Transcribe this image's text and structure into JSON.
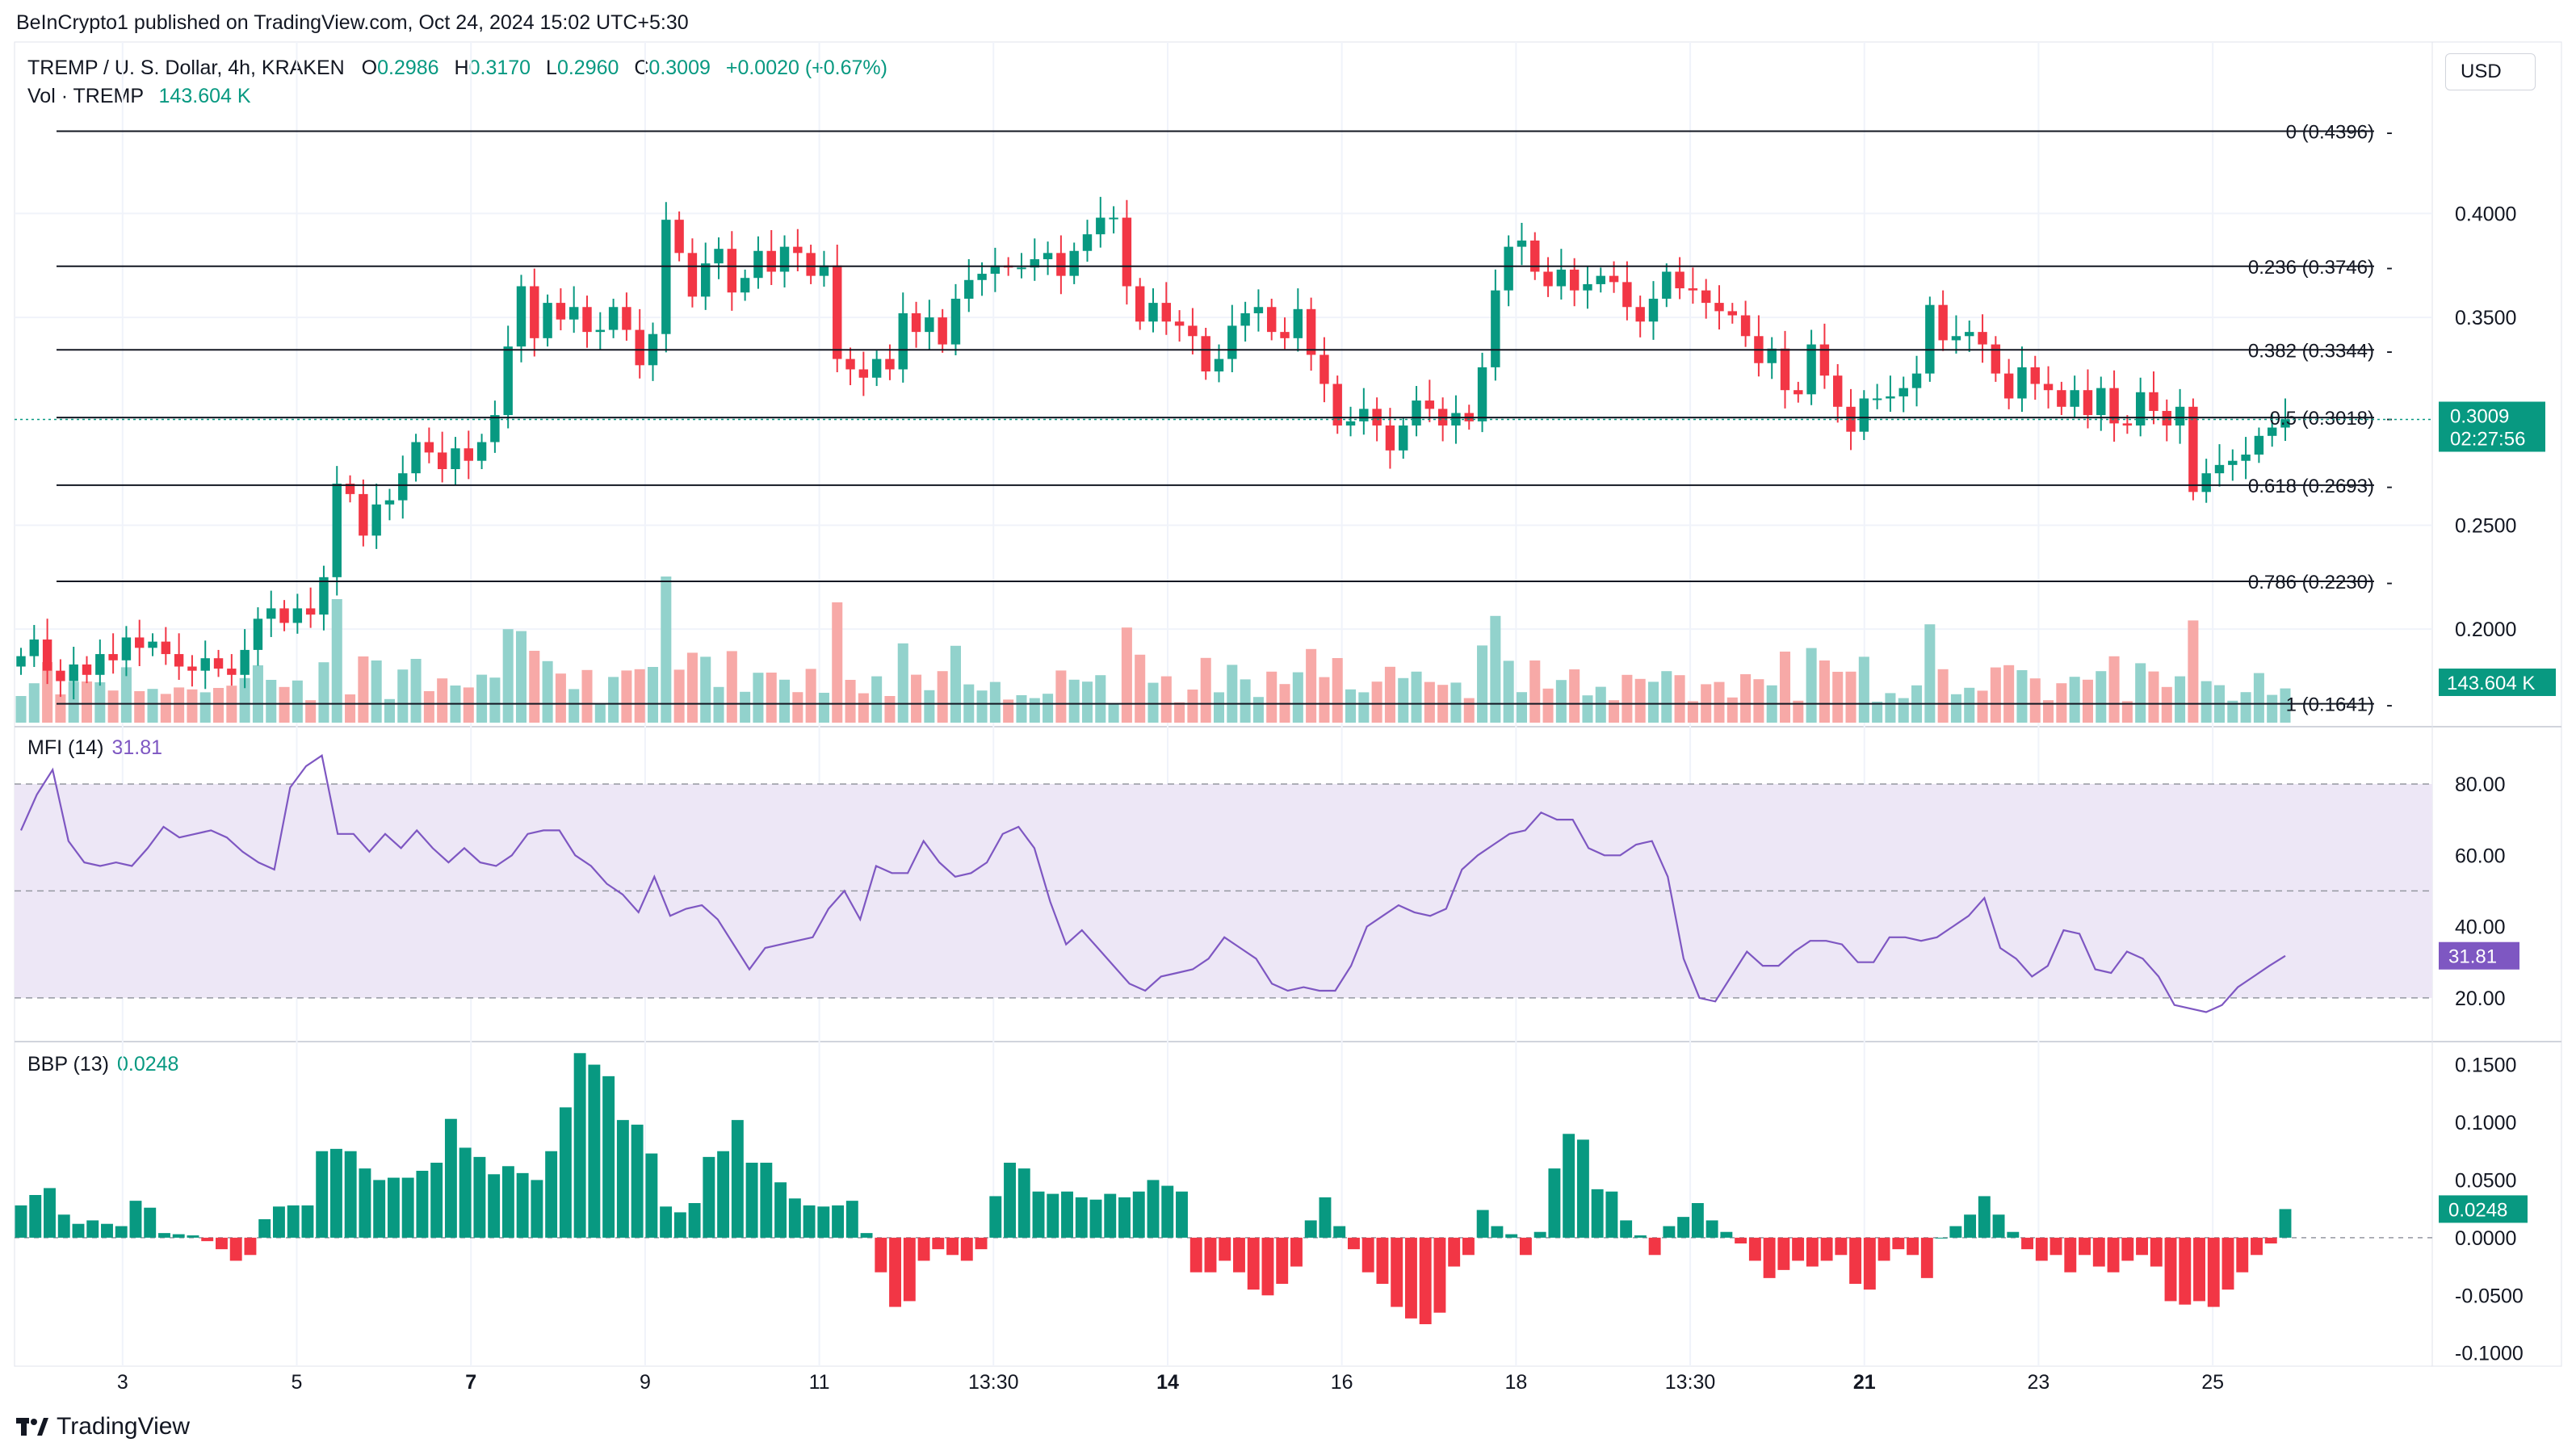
{
  "header": {
    "attribution": "BeInCrypto1 published on TradingView.com, Oct 24, 2024 15:02 UTC+5:30",
    "symbol": "TREMP / U. S. Dollar, 4h, KRAKEN",
    "ohlc": [
      {
        "k": "O",
        "v": "0.2986"
      },
      {
        "k": "H",
        "v": "0.3170"
      },
      {
        "k": "L",
        "v": "0.2960"
      },
      {
        "k": "C",
        "v": "0.3009"
      }
    ],
    "change": "+0.0020 (+0.67%)",
    "vol_label": "Vol · TREMP",
    "vol_value": "143.604 K",
    "currency": "USD"
  },
  "footer": {
    "brand": "TradingView"
  },
  "colors": {
    "up": "#089981",
    "down": "#f23645",
    "up_vol": "#92d2cc",
    "down_vol": "#f7a9a7",
    "mfi": "#7e57c2",
    "mfi_band": "#ede7f6"
  },
  "chart_data": [
    {
      "type": "candlestick",
      "title": "TREMP / U. S. Dollar, 4h, KRAKEN",
      "ylim": [
        0.155,
        0.46
      ],
      "y_ticks": [
        "0.4000",
        "0.3500",
        "0.2500",
        "0.2000"
      ],
      "x_ticks": [
        "3",
        "5",
        "7",
        "9",
        "11",
        "13:30",
        "14",
        "16",
        "18",
        "13:30",
        "21",
        "23",
        "25"
      ],
      "bold_x_ticks": [
        "7",
        "14",
        "21"
      ],
      "fib_levels": [
        {
          "ratio": "0",
          "value": 0.4396,
          "label": "0 (0.4396)"
        },
        {
          "ratio": "0.236",
          "value": 0.3746,
          "label": "0.236 (0.3746)"
        },
        {
          "ratio": "0.382",
          "value": 0.3344,
          "label": "0.382 (0.3344)"
        },
        {
          "ratio": "0.5",
          "value": 0.3018,
          "label": "0.5 (0.3018)"
        },
        {
          "ratio": "0.618",
          "value": 0.2693,
          "label": "0.618 (0.2693)"
        },
        {
          "ratio": "0.786",
          "value": 0.223,
          "label": "0.786 (0.2230)"
        },
        {
          "ratio": "1",
          "value": 0.1641,
          "label": "1 (0.1641)"
        }
      ],
      "last_price": "0.3009",
      "countdown": "02:27:56",
      "last_volume": "143.604 K",
      "closes": [
        0.187,
        0.195,
        0.18,
        0.175,
        0.183,
        0.178,
        0.188,
        0.185,
        0.196,
        0.191,
        0.194,
        0.188,
        0.182,
        0.18,
        0.186,
        0.181,
        0.178,
        0.19,
        0.205,
        0.21,
        0.203,
        0.21,
        0.207,
        0.225,
        0.27,
        0.265,
        0.245,
        0.26,
        0.262,
        0.275,
        0.29,
        0.285,
        0.277,
        0.287,
        0.281,
        0.29,
        0.303,
        0.336,
        0.365,
        0.34,
        0.357,
        0.349,
        0.355,
        0.343,
        0.344,
        0.355,
        0.344,
        0.327,
        0.342,
        0.397,
        0.381,
        0.36,
        0.376,
        0.383,
        0.362,
        0.369,
        0.382,
        0.372,
        0.384,
        0.381,
        0.37,
        0.375,
        0.33,
        0.325,
        0.321,
        0.33,
        0.325,
        0.352,
        0.343,
        0.35,
        0.337,
        0.359,
        0.368,
        0.371,
        0.375,
        0.374,
        0.374,
        0.378,
        0.381,
        0.37,
        0.382,
        0.39,
        0.398,
        0.398,
        0.365,
        0.348,
        0.357,
        0.348,
        0.346,
        0.341,
        0.324,
        0.33,
        0.346,
        0.352,
        0.355,
        0.343,
        0.34,
        0.354,
        0.332,
        0.318,
        0.298,
        0.3,
        0.306,
        0.298,
        0.286,
        0.298,
        0.31,
        0.306,
        0.298,
        0.304,
        0.3,
        0.326,
        0.363,
        0.384,
        0.387,
        0.372,
        0.365,
        0.373,
        0.363,
        0.366,
        0.37,
        0.367,
        0.355,
        0.348,
        0.359,
        0.372,
        0.364,
        0.363,
        0.357,
        0.353,
        0.351,
        0.341,
        0.328,
        0.335,
        0.315,
        0.313,
        0.337,
        0.322,
        0.307,
        0.295,
        0.311,
        0.311,
        0.312,
        0.316,
        0.323,
        0.356,
        0.339,
        0.341,
        0.343,
        0.337,
        0.323,
        0.311,
        0.326,
        0.318,
        0.315,
        0.307,
        0.315,
        0.303,
        0.316,
        0.299,
        0.298,
        0.314,
        0.305,
        0.298,
        0.307,
        0.266,
        0.275,
        0.279,
        0.281,
        0.284,
        0.293,
        0.297,
        0.301
      ]
    },
    {
      "type": "line",
      "title": "MFI (14)",
      "value": "31.81",
      "ylim": [
        10,
        92
      ],
      "y_ticks": [
        "80.00",
        "60.00",
        "40.00",
        "20.00"
      ],
      "bands": [
        80,
        50,
        20
      ],
      "values": [
        67,
        77,
        84,
        64,
        58,
        57,
        58,
        57,
        62,
        68,
        65,
        66,
        67,
        65,
        61,
        58,
        56,
        79,
        85,
        88,
        66,
        66,
        61,
        66,
        62,
        67,
        62,
        58,
        62,
        58,
        57,
        60,
        66,
        67,
        67,
        60,
        57,
        52,
        49,
        44,
        54,
        43,
        45,
        46,
        42,
        35,
        28,
        34,
        35,
        36,
        37,
        45,
        50,
        42,
        57,
        55,
        55,
        64,
        58,
        54,
        55,
        58,
        66,
        68,
        62,
        47,
        35,
        39,
        34,
        29,
        24,
        22,
        26,
        27,
        28,
        31,
        37,
        34,
        31,
        24,
        22,
        23,
        22,
        22,
        29,
        40,
        43,
        46,
        44,
        43,
        45,
        56,
        60,
        63,
        66,
        67,
        72,
        70,
        70,
        62,
        60,
        60,
        63,
        64,
        54,
        31,
        20,
        19,
        26,
        33,
        29,
        29,
        33,
        36,
        36,
        35,
        30,
        30,
        37,
        37,
        36,
        37,
        40,
        43,
        48,
        34,
        31,
        26,
        29,
        39,
        38,
        28,
        27,
        33,
        31,
        26,
        18,
        17,
        16,
        18,
        23,
        26,
        29,
        31.8
      ]
    },
    {
      "type": "bar",
      "title": "BBP (13)",
      "value": "0.0248",
      "ylim": [
        -0.103,
        0.163
      ],
      "y_ticks": [
        "0.1500",
        "0.1000",
        "0.0500",
        "0.0000",
        "-0.0500",
        "-0.1000"
      ],
      "values": [
        0.028,
        0.037,
        0.043,
        0.02,
        0.012,
        0.015,
        0.012,
        0.01,
        0.032,
        0.026,
        0.004,
        0.003,
        0.002,
        -0.003,
        -0.01,
        -0.02,
        -0.015,
        0.016,
        0.027,
        0.028,
        0.028,
        0.075,
        0.077,
        0.075,
        0.06,
        0.05,
        0.052,
        0.052,
        0.058,
        0.065,
        0.103,
        0.078,
        0.07,
        0.055,
        0.062,
        0.056,
        0.05,
        0.075,
        0.113,
        0.16,
        0.15,
        0.14,
        0.102,
        0.098,
        0.073,
        0.027,
        0.022,
        0.03,
        0.07,
        0.075,
        0.102,
        0.065,
        0.065,
        0.048,
        0.034,
        0.028,
        0.027,
        0.028,
        0.032,
        0.004,
        -0.03,
        -0.06,
        -0.055,
        -0.02,
        -0.01,
        -0.015,
        -0.02,
        -0.01,
        0.036,
        0.065,
        0.06,
        0.04,
        0.038,
        0.04,
        0.035,
        0.033,
        0.038,
        0.035,
        0.04,
        0.05,
        0.045,
        0.04,
        -0.03,
        -0.03,
        -0.02,
        -0.03,
        -0.045,
        -0.05,
        -0.04,
        -0.025,
        0.015,
        0.035,
        0.01,
        -0.01,
        -0.03,
        -0.04,
        -0.06,
        -0.07,
        -0.075,
        -0.065,
        -0.025,
        -0.015,
        0.024,
        0.01,
        0.003,
        -0.015,
        0.005,
        0.06,
        0.09,
        0.085,
        0.042,
        0.04,
        0.015,
        0.002,
        -0.015,
        0.01,
        0.018,
        0.03,
        0.015,
        0.005,
        -0.005,
        -0.02,
        -0.035,
        -0.028,
        -0.02,
        -0.025,
        -0.02,
        -0.015,
        -0.04,
        -0.045,
        -0.02,
        -0.01,
        -0.015,
        -0.035,
        0.0,
        0.01,
        0.02,
        0.036,
        0.02,
        0.005,
        -0.01,
        -0.02,
        -0.015,
        -0.03,
        -0.015,
        -0.025,
        -0.03,
        -0.02,
        -0.015,
        -0.025,
        -0.055,
        -0.058,
        -0.055,
        -0.06,
        -0.045,
        -0.03,
        -0.015,
        -0.005,
        0.0248
      ]
    }
  ]
}
